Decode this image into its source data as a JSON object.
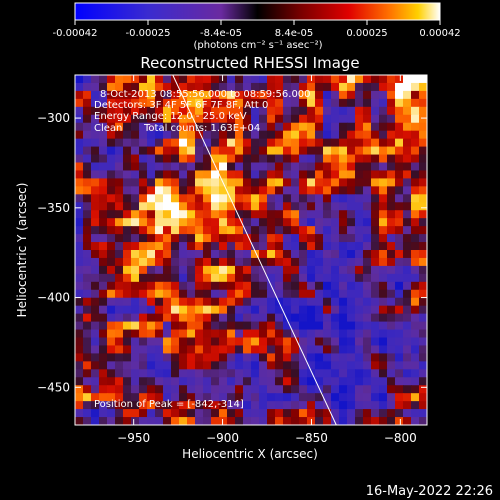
{
  "figure": {
    "title": "Reconstructed RHESSI Image",
    "timestamp": "16-May-2022 22:26"
  },
  "colorbar": {
    "tick_labels": [
      "-0.00042",
      "-0.00025",
      "-8.4e-05",
      "8.4e-05",
      "0.00025",
      "0.00042"
    ],
    "unit_label": "(photons cm⁻² s⁻¹ asec⁻²)",
    "range": [
      -0.00042,
      0.00042
    ],
    "colors": [
      "#0000ff",
      "#3a2bd0",
      "#6a2aa0",
      "#000000",
      "#7a0000",
      "#e00000",
      "#ff7000",
      "#ffd000",
      "#ffffff"
    ]
  },
  "annotations": {
    "time_range": "8-Oct-2013 08:55:56.000 to 08:59:56.000",
    "detectors": "Detectors: 3F 4F 5F 6F 7F 8F, Att 0",
    "energy_range": "Energy Range: 12.0 - 25.0 keV",
    "clean": "Clean",
    "total_counts": "Total counts: 1.63E+04",
    "peak_position": "Position of Peak = [-842,-314]"
  },
  "chart_data": {
    "type": "heatmap",
    "title": "Reconstructed RHESSI Image",
    "xlabel": "Heliocentric X (arcsec)",
    "ylabel": "Heliocentric Y (arcsec)",
    "xlim": [
      -983,
      -785
    ],
    "ylim": [
      -471,
      -276
    ],
    "x_ticks": [
      -950,
      -900,
      -850,
      -800
    ],
    "x_tick_labels": [
      "−950",
      "−900",
      "−850",
      "−800"
    ],
    "y_ticks": [
      -300,
      -350,
      -400,
      -450
    ],
    "y_tick_labels": [
      "−300",
      "−350",
      "−400",
      "−450"
    ],
    "peak": [
      -842,
      -314
    ],
    "limb_line": [
      [
        -928,
        -276
      ],
      [
        -836,
        -471
      ]
    ]
  }
}
